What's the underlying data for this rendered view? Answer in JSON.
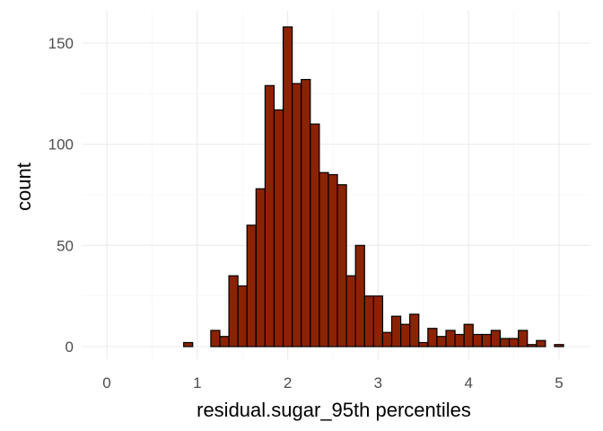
{
  "chart_data": {
    "type": "bar",
    "title": "",
    "xlabel": "residual.sugar_95th percentiles",
    "ylabel": "count",
    "xlim": [
      -0.1,
      5.2
    ],
    "ylim": [
      0,
      165
    ],
    "x_ticks": [
      0,
      1,
      2,
      3,
      4,
      5
    ],
    "y_ticks": [
      0,
      50,
      100,
      150
    ],
    "x_tick_labels": [
      "0",
      "1",
      "2",
      "3",
      "4",
      "5"
    ],
    "y_tick_labels": [
      "0",
      "50",
      "100",
      "150"
    ],
    "grid": true,
    "bin_width": 0.1,
    "bin_centers": [
      0.1,
      0.2,
      0.3,
      0.4,
      0.5,
      0.6,
      0.7,
      0.8,
      0.9,
      1.0,
      1.1,
      1.2,
      1.3,
      1.4,
      1.5,
      1.6,
      1.7,
      1.8,
      1.9,
      2.0,
      2.1,
      2.2,
      2.3,
      2.4,
      2.5,
      2.6,
      2.7,
      2.8,
      2.9,
      3.0,
      3.1,
      3.2,
      3.3,
      3.4,
      3.5,
      3.6,
      3.7,
      3.8,
      3.9,
      4.0,
      4.1,
      4.2,
      4.3,
      4.4,
      4.5,
      4.6,
      4.7,
      4.8,
      4.9,
      5.0
    ],
    "values": [
      0,
      0,
      0,
      0,
      0,
      0,
      0,
      0,
      2,
      0,
      0,
      8,
      5,
      35,
      30,
      60,
      78,
      129,
      117,
      158,
      130,
      132,
      110,
      86,
      85,
      80,
      35,
      50,
      25,
      25,
      7,
      15,
      11,
      16,
      2,
      9,
      5,
      8,
      6,
      11,
      6,
      6,
      8,
      4,
      4,
      8,
      1,
      3,
      0,
      1
    ],
    "colors": {
      "fill": "#8b2300",
      "stroke": "#000000"
    }
  }
}
